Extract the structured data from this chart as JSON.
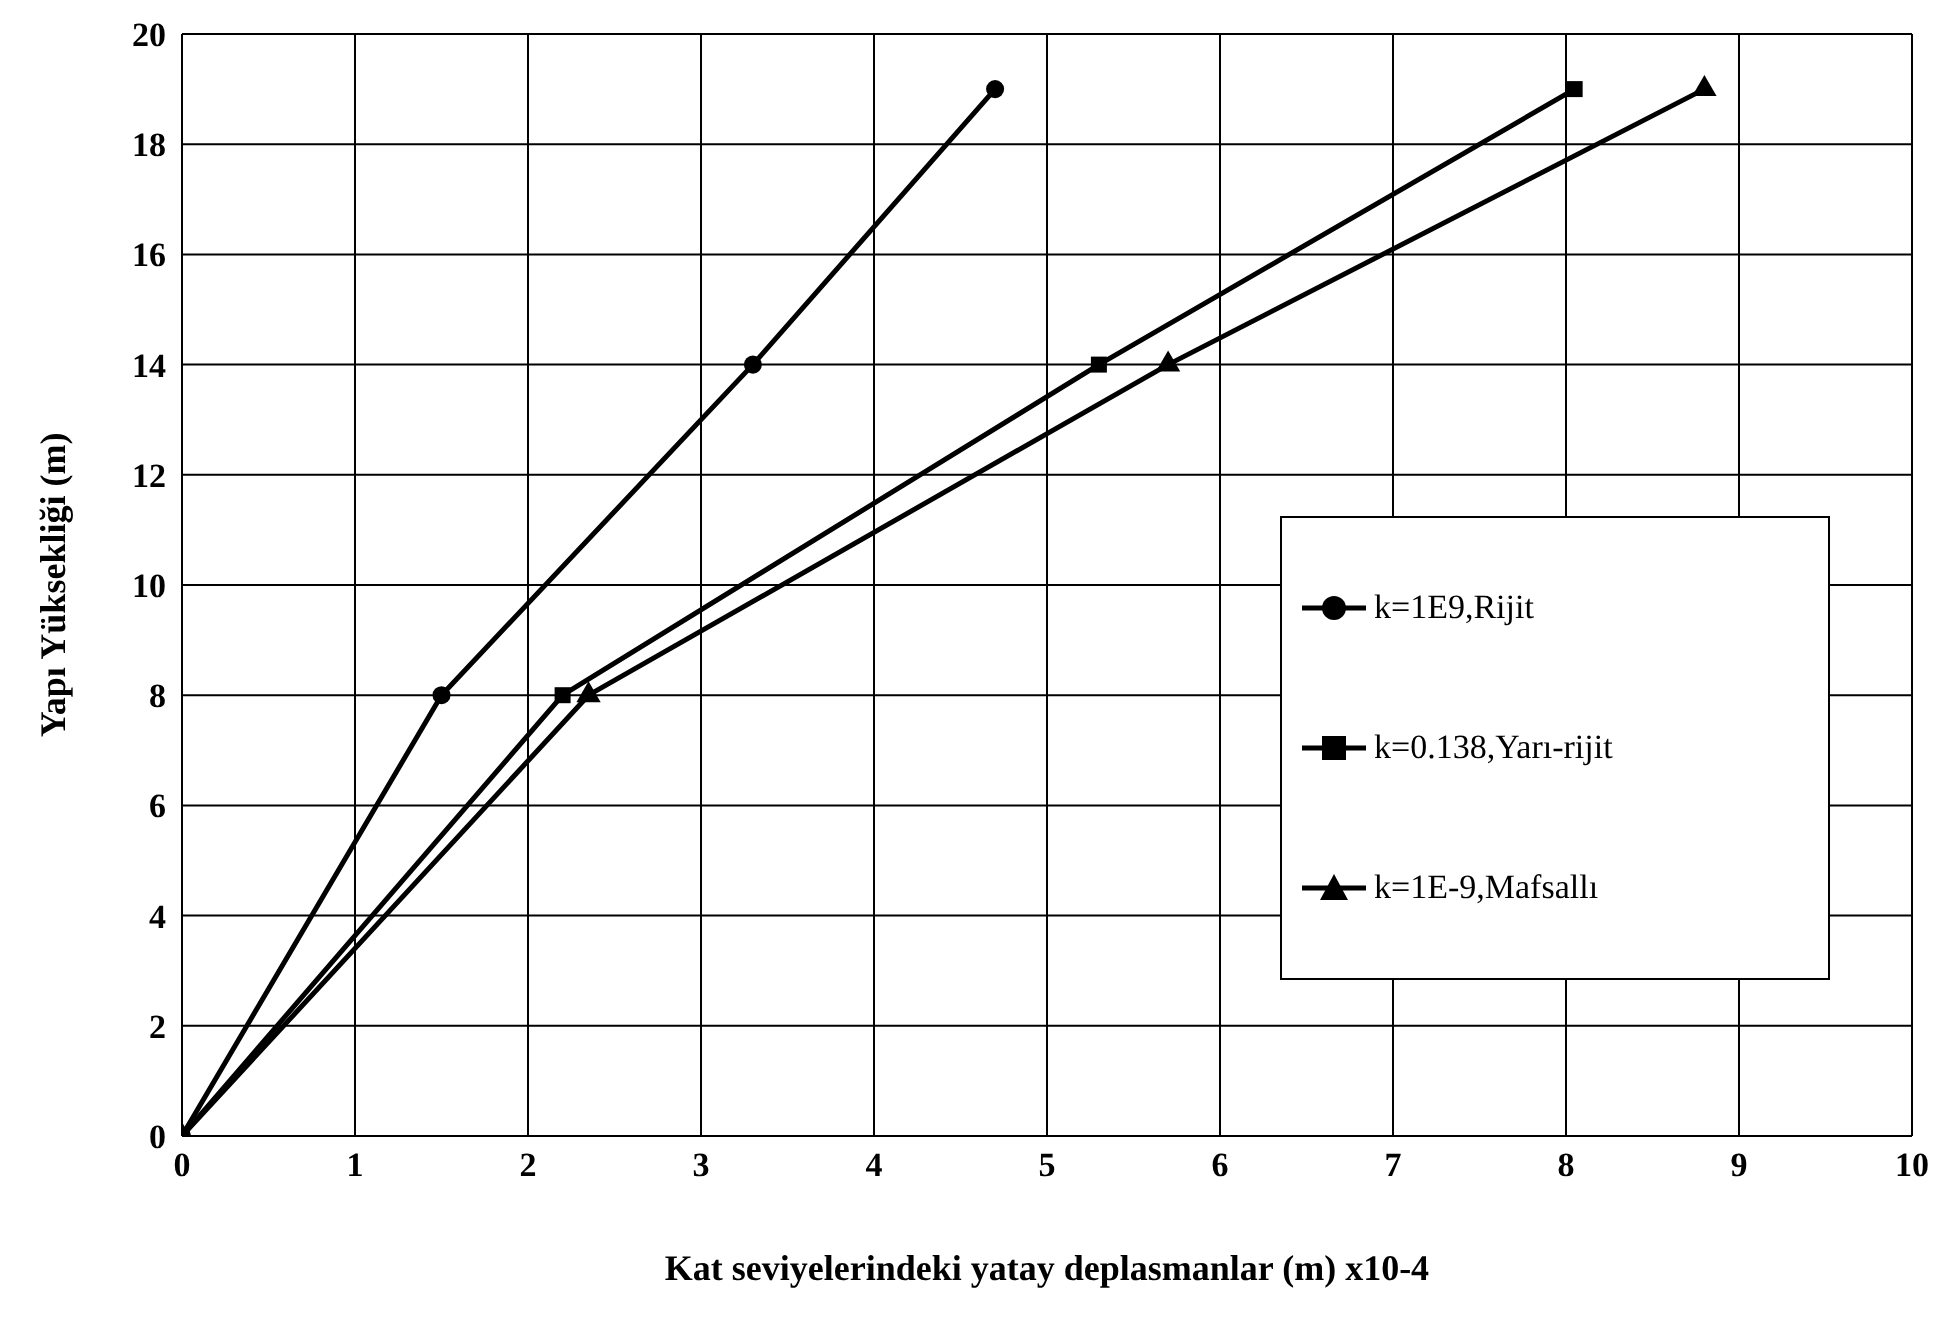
{
  "chart_data": {
    "type": "line",
    "xlabel": "Kat seviyelerindeki yatay deplasmanlar (m) x10-4",
    "ylabel": "Yapı Yüksekliği (m)",
    "xlim": [
      0,
      10
    ],
    "xticks": [
      0,
      1,
      2,
      3,
      4,
      5,
      6,
      7,
      8,
      9,
      10
    ],
    "ylim": [
      0,
      20
    ],
    "yticks": [
      0,
      2,
      4,
      6,
      8,
      10,
      12,
      14,
      16,
      18,
      20
    ],
    "grid": true,
    "legend": "right",
    "line_style": "solid",
    "series": [
      {
        "name": "k=1E9,Rijit",
        "color": "#000000",
        "marker": "circle",
        "x": [
          0,
          1.5,
          3.3,
          4.7
        ],
        "values": [
          0,
          8,
          14,
          19
        ]
      },
      {
        "name": "k=0.138,Yarı-rijit",
        "color": "#000000",
        "marker": "square",
        "x": [
          0,
          2.2,
          5.3,
          8.05
        ],
        "values": [
          0,
          8,
          14,
          19
        ]
      },
      {
        "name": "k=1E-9,Mafsallı",
        "color": "#000000",
        "marker": "triangle",
        "x": [
          0,
          2.35,
          5.7,
          8.8
        ],
        "values": [
          0,
          8,
          14,
          19
        ]
      }
    ]
  }
}
